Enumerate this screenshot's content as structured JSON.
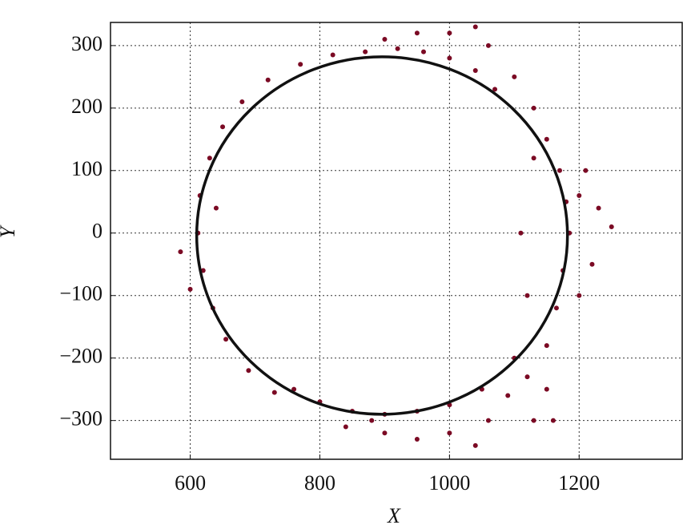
{
  "chart_data": {
    "type": "scatter",
    "x_label": "X",
    "y_label": "Y",
    "xlim": [
      477,
      1359
    ],
    "ylim": [
      -362,
      337
    ],
    "xticks": [
      600,
      800,
      1000,
      1200
    ],
    "yticks": [
      {
        "value": -300,
        "label": "−300"
      },
      {
        "value": -200,
        "label": "−200"
      },
      {
        "value": -100,
        "label": "−100"
      },
      0,
      100,
      200,
      300
    ],
    "grid": true,
    "color": "#7b0a24",
    "x": [
      612,
      615,
      620,
      630,
      635,
      650,
      655,
      680,
      690,
      720,
      730,
      600,
      585,
      640,
      770,
      820,
      870,
      920,
      960,
      1000,
      1040,
      1070,
      900,
      950,
      1000,
      1040,
      1060,
      1100,
      1130,
      1150,
      1170,
      1180,
      1185,
      1175,
      1165,
      1150,
      1120,
      1090,
      1200,
      1230,
      1250,
      1220,
      1200,
      1150,
      1130,
      1100,
      1120,
      1110,
      1130,
      1210,
      1160,
      1050,
      1000,
      950,
      900,
      850,
      800,
      760,
      840,
      900,
      950,
      1000,
      1040,
      880,
      1060
    ],
    "y": [
      0,
      60,
      -60,
      120,
      -120,
      170,
      -170,
      210,
      -220,
      245,
      -255,
      -90,
      -30,
      40,
      270,
      285,
      290,
      295,
      290,
      280,
      260,
      230,
      310,
      320,
      320,
      330,
      300,
      250,
      200,
      150,
      100,
      50,
      0,
      -60,
      -120,
      -180,
      -230,
      -260,
      60,
      40,
      10,
      -50,
      -100,
      -250,
      -300,
      -200,
      -100,
      0,
      120,
      100,
      -300,
      -250,
      -275,
      -285,
      -290,
      -285,
      -270,
      -250,
      -310,
      -320,
      -330,
      -320,
      -340,
      -300,
      -300
    ],
    "fit_circle": {
      "cx": 896,
      "cy": -4,
      "r": 286,
      "color": "#111111"
    }
  }
}
